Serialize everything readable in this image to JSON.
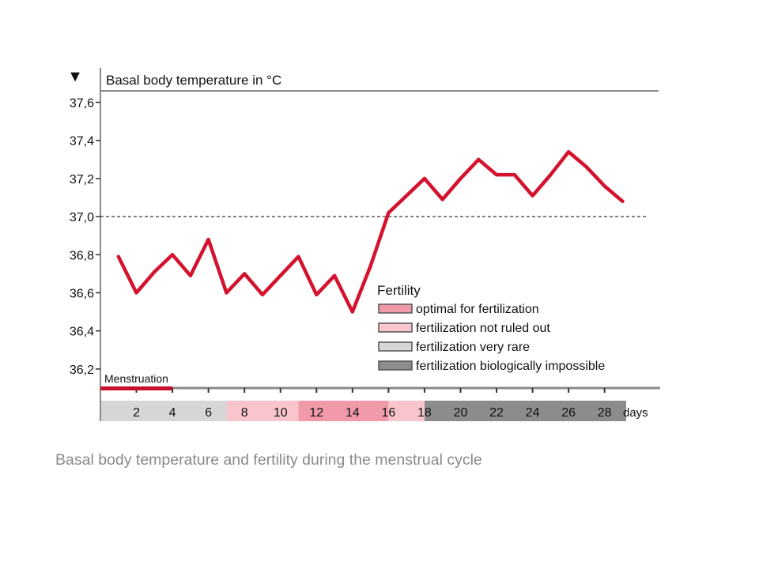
{
  "chart_data": {
    "type": "line",
    "title": "Basal body temperature in °C",
    "caption": "Basal body temperature and fertility during the menstrual cycle",
    "series": [
      {
        "values": [
          [
            1,
            36.79
          ],
          [
            2,
            36.6
          ],
          [
            3,
            36.71
          ],
          [
            4,
            36.8
          ],
          [
            5,
            36.69
          ],
          [
            6,
            36.88
          ],
          [
            7,
            36.6
          ],
          [
            8,
            36.7
          ],
          [
            9,
            36.59
          ],
          [
            10,
            36.69
          ],
          [
            11,
            36.79
          ],
          [
            12,
            36.59
          ],
          [
            13,
            36.69
          ],
          [
            14,
            36.5
          ],
          [
            15,
            36.74
          ],
          [
            16,
            37.02
          ],
          [
            17,
            37.11
          ],
          [
            18,
            37.2
          ],
          [
            19,
            37.09
          ],
          [
            20,
            37.2
          ],
          [
            21,
            37.3
          ],
          [
            22,
            37.22
          ],
          [
            23,
            37.22
          ],
          [
            24,
            37.11
          ],
          [
            25,
            37.22
          ],
          [
            26,
            37.34
          ],
          [
            27,
            37.26
          ],
          [
            28,
            37.16
          ],
          [
            29,
            37.08
          ]
        ],
        "color": "#d4122e"
      }
    ],
    "reference_line": {
      "y": 37.0,
      "style": "dashed"
    },
    "xlabel": "days",
    "x_ticks": [
      "2",
      "4",
      "6",
      "8",
      "10",
      "12",
      "14",
      "16",
      "18",
      "20",
      "22",
      "24",
      "26",
      "28"
    ],
    "xlim": [
      0,
      31
    ],
    "y_ticks": [
      "37,6",
      "37,4",
      "37,2",
      "37,0",
      "36,8",
      "36,6",
      "36,4",
      "36,2"
    ],
    "ylim": [
      36.1,
      37.66
    ],
    "y_arrow": "▼",
    "menstruation": {
      "label": "Menstruation",
      "from_day": 0,
      "to_day": 4,
      "color": "#c8102e"
    },
    "fertility_bands": [
      {
        "from_day": 0,
        "to_day": 7,
        "category": "very_rare"
      },
      {
        "from_day": 7,
        "to_day": 11,
        "category": "not_ruled_out"
      },
      {
        "from_day": 11,
        "to_day": 16,
        "category": "optimal"
      },
      {
        "from_day": 16,
        "to_day": 18,
        "category": "not_ruled_out"
      },
      {
        "from_day": 18,
        "to_day": 29.2,
        "category": "impossible"
      }
    ],
    "legend": {
      "title": "Fertility",
      "entries": [
        {
          "key": "optimal",
          "label": "optimal for fertilization",
          "color": "#f09aa9"
        },
        {
          "key": "not_ruled_out",
          "label": "fertilization not ruled out",
          "color": "#f8c5cd"
        },
        {
          "key": "very_rare",
          "label": "fertilization very rare",
          "color": "#d6d6d6"
        },
        {
          "key": "impossible",
          "label": "fertilization biologically impossible",
          "color": "#8c8c8c"
        }
      ]
    },
    "colors": {
      "axis": "#8a8a8a",
      "text": "#111111",
      "caption": "#8a8a8a"
    }
  }
}
